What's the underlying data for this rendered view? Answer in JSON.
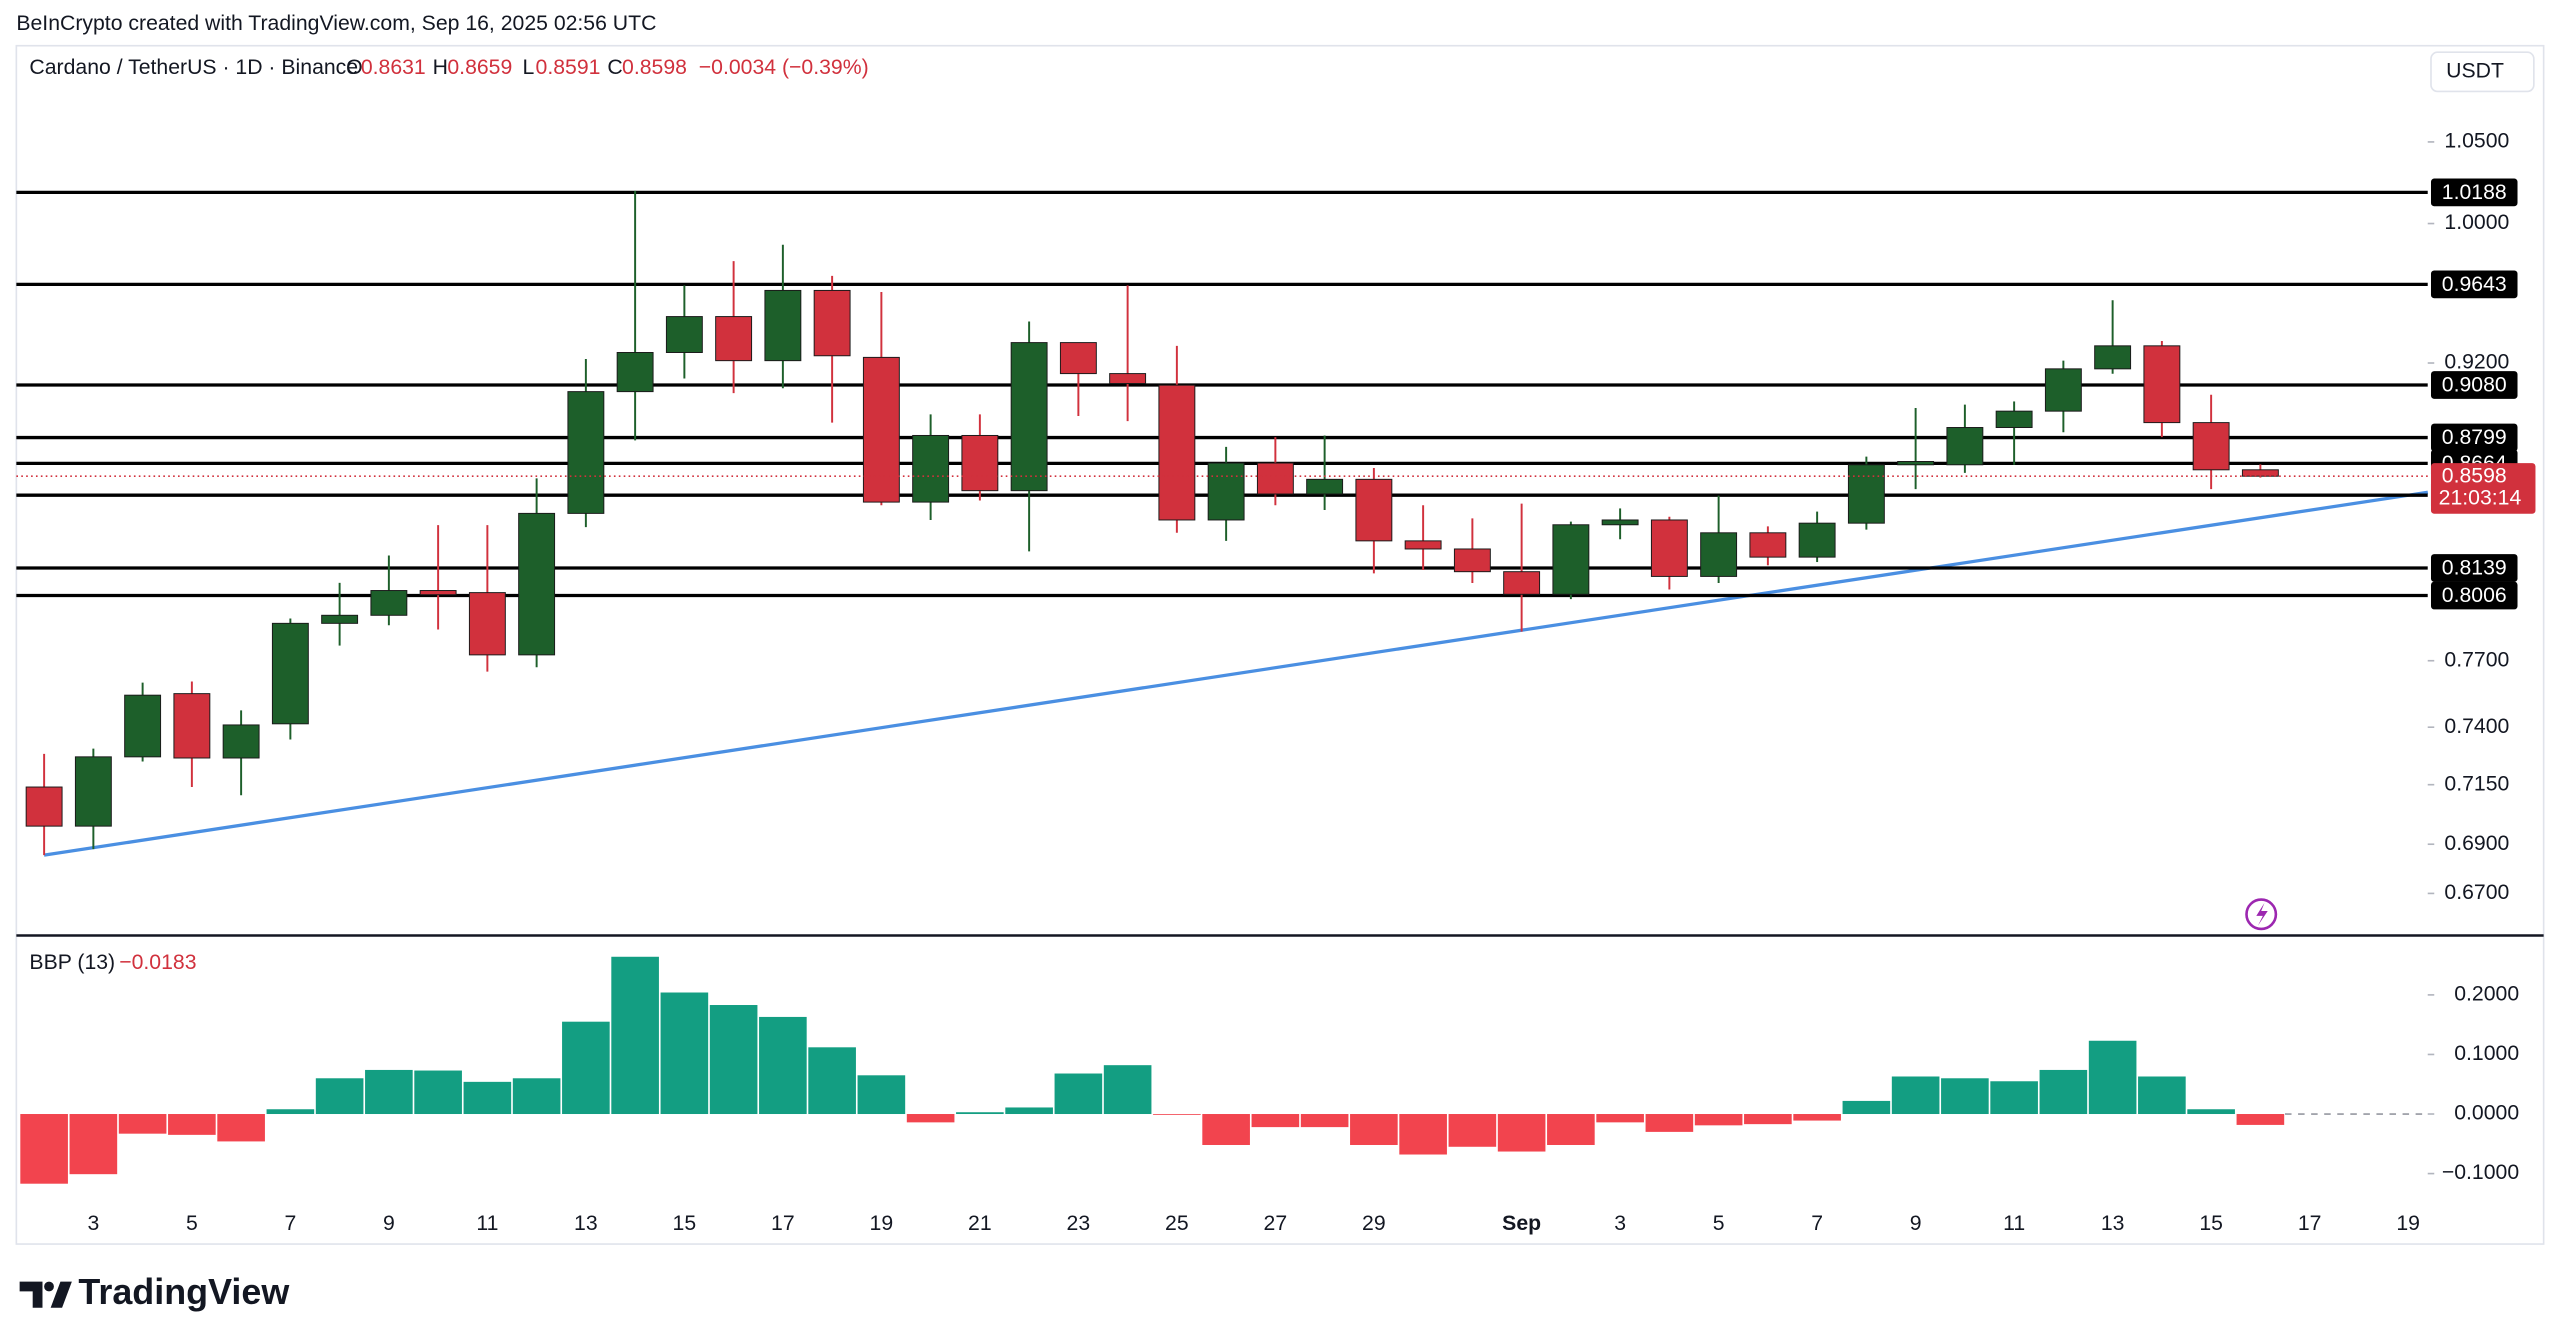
{
  "header": {
    "attribution": "BeInCrypto created with TradingView.com, Sep 16, 2025 02:56 UTC",
    "logo": "TradingView"
  },
  "chart_data": [
    {
      "type": "candlestick",
      "title": "Cardano / TetherUS · 1D · Binance",
      "ohlc_labels": [
        "O",
        "H",
        "L",
        "C"
      ],
      "change": "−0.0034 (−0.39%)",
      "currency": "USDT",
      "categories": [
        null,
        "3",
        null,
        "5",
        null,
        "7",
        null,
        "9",
        null,
        "11",
        null,
        "13",
        null,
        "15",
        null,
        "17",
        null,
        "19",
        null,
        "21",
        null,
        "23",
        null,
        "25",
        null,
        "27",
        null,
        "29",
        null,
        null,
        "Sep",
        null,
        "3",
        null,
        "5",
        null,
        "7",
        null,
        "9",
        null,
        "11",
        null,
        "13",
        null,
        "15",
        null,
        "17",
        null,
        "19"
      ],
      "open": [
        0.714,
        0.6975,
        0.727,
        0.755,
        0.7265,
        0.7415,
        0.7874,
        0.7912,
        0.803,
        0.802,
        0.7727,
        0.8409,
        0.9044,
        0.9258,
        0.9459,
        0.9213,
        0.9608,
        0.9231,
        0.8466,
        0.881,
        0.8524,
        0.9313,
        0.9142,
        0.9079,
        0.8376,
        0.8666,
        0.8507,
        0.8582,
        0.8272,
        0.8232,
        0.8121,
        0.8012,
        0.8352,
        0.8376,
        0.8098,
        0.8312,
        0.8192,
        0.836,
        0.8657,
        0.8657,
        0.8852,
        0.8939,
        0.9168,
        0.9295,
        0.8878,
        0.8631,
        null,
        null,
        null
      ],
      "high": [
        0.7283,
        0.7306,
        0.76,
        0.7605,
        0.7475,
        0.7897,
        0.8067,
        0.82,
        0.835,
        0.835,
        0.8587,
        0.9222,
        1.0197,
        0.9637,
        0.9778,
        0.9874,
        0.9692,
        0.9599,
        0.8922,
        0.8922,
        0.9431,
        0.9313,
        0.9637,
        0.9295,
        0.875,
        0.8801,
        0.881,
        0.864,
        0.845,
        0.8384,
        0.8458,
        0.8368,
        0.8434,
        0.8392,
        0.8499,
        0.8344,
        0.8418,
        0.8699,
        0.8956,
        0.8974,
        0.8991,
        0.9213,
        0.9552,
        0.9322,
        0.9027,
        0.8659,
        null,
        null,
        null
      ],
      "low": [
        0.6855,
        0.688,
        0.725,
        0.714,
        0.7105,
        0.7346,
        0.777,
        0.7865,
        0.7845,
        0.765,
        0.767,
        0.834,
        0.8784,
        0.9115,
        0.9036,
        0.9062,
        0.8878,
        0.845,
        0.8376,
        0.8474,
        0.822,
        0.8913,
        0.8886,
        0.8312,
        0.8272,
        0.845,
        0.8426,
        0.8113,
        0.8129,
        0.8066,
        0.7835,
        0.7989,
        0.828,
        0.8035,
        0.8066,
        0.8152,
        0.8168,
        0.8328,
        0.8532,
        0.8615,
        0.8657,
        0.8827,
        0.9141,
        0.8801,
        0.8532,
        0.8591,
        null,
        null,
        null
      ],
      "close": [
        0.6975,
        0.727,
        0.7543,
        0.7265,
        0.741,
        0.7874,
        0.7912,
        0.803,
        0.801,
        0.7727,
        0.8409,
        0.9044,
        0.9258,
        0.9459,
        0.9213,
        0.9608,
        0.924,
        0.8466,
        0.881,
        0.8524,
        0.9313,
        0.9142,
        0.9088,
        0.8376,
        0.8666,
        0.8507,
        0.8582,
        0.8272,
        0.8232,
        0.8121,
        0.8012,
        0.8352,
        0.8376,
        0.8098,
        0.8312,
        0.8192,
        0.836,
        0.8657,
        0.8674,
        0.8852,
        0.8939,
        0.9168,
        0.9295,
        0.8878,
        0.8631,
        0.8598,
        null,
        null,
        null
      ],
      "up_color": "#1d5f2a",
      "down_color": "#d1313d",
      "log_scale": true,
      "grid": false,
      "ylim": [
        0.654,
        1.11
      ],
      "yticks": [
        {
          "value": 1.05,
          "label": "1.0500"
        },
        {
          "value": 1.0,
          "label": "1.0000"
        },
        {
          "value": 0.92,
          "label": "0.9200"
        },
        {
          "value": 0.77,
          "label": "0.7700"
        },
        {
          "value": 0.74,
          "label": "0.7400"
        },
        {
          "value": 0.715,
          "label": "0.7150"
        },
        {
          "value": 0.69,
          "label": "0.6900"
        },
        {
          "value": 0.67,
          "label": "0.6700"
        }
      ],
      "levels": [
        1.0188,
        0.9643,
        {
          "value": 0.908,
          "label": "0.9080"
        },
        0.8799,
        0.8664,
        0.8501,
        0.8139,
        0.8006
      ],
      "level_color": "#000000",
      "last_price_countdown": "21:03:14",
      "trendline": {
        "x": [
          0,
          48.4
        ],
        "y": [
          0.6855,
          0.8516
        ],
        "color": "#4a8fe2"
      }
    },
    {
      "type": "bar",
      "title": "BBP (13)",
      "legend_value": "−0.0183",
      "values": [
        -0.117,
        -0.101,
        -0.033,
        -0.035,
        -0.046,
        0.008,
        0.06,
        0.074,
        0.073,
        0.054,
        0.06,
        0.155,
        0.264,
        0.204,
        0.183,
        0.163,
        0.112,
        0.065,
        -0.014,
        0.003,
        0.011,
        0.068,
        0.082,
        -0.001,
        -0.052,
        -0.022,
        -0.022,
        -0.052,
        -0.068,
        -0.055,
        -0.063,
        -0.052,
        -0.014,
        -0.03,
        -0.019,
        -0.017,
        -0.011,
        0.022,
        0.063,
        0.06,
        0.055,
        0.074,
        0.123,
        0.063,
        0.008,
        -0.0183,
        null,
        null,
        null
      ],
      "positive_color": "#139e82",
      "negative_color": "#f2444e",
      "ylim": [
        -0.158,
        0.297
      ],
      "yticks": [
        {
          "value": 0.2,
          "label": "0.2000"
        },
        {
          "value": 0.1,
          "label": "0.1000"
        },
        {
          "value": 0,
          "label": "0.0000"
        },
        {
          "value": -0.1,
          "label": "−0.1000"
        }
      ]
    }
  ]
}
